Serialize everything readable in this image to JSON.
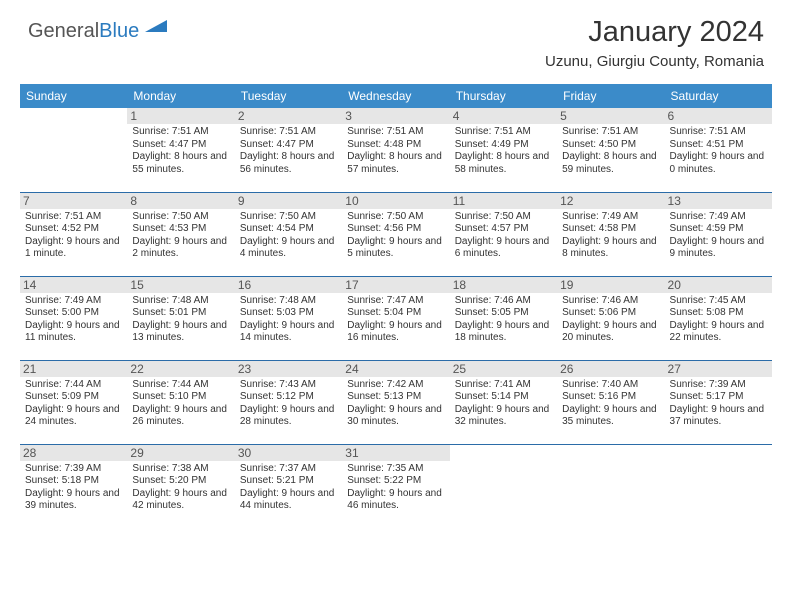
{
  "logo": {
    "text1": "General",
    "text2": "Blue"
  },
  "title": "January 2024",
  "location": "Uzunu, Giurgiu County, Romania",
  "colors": {
    "header_bg": "#3b8bc9",
    "header_text": "#ffffff",
    "day_num_bg": "#e6e6e6",
    "row_border": "#2b6ca8"
  },
  "day_headers": [
    "Sunday",
    "Monday",
    "Tuesday",
    "Wednesday",
    "Thursday",
    "Friday",
    "Saturday"
  ],
  "weeks": [
    [
      {
        "empty": true
      },
      {
        "day": "1",
        "sunrise": "7:51 AM",
        "sunset": "4:47 PM",
        "daylight": "8 hours and 55 minutes."
      },
      {
        "day": "2",
        "sunrise": "7:51 AM",
        "sunset": "4:47 PM",
        "daylight": "8 hours and 56 minutes."
      },
      {
        "day": "3",
        "sunrise": "7:51 AM",
        "sunset": "4:48 PM",
        "daylight": "8 hours and 57 minutes."
      },
      {
        "day": "4",
        "sunrise": "7:51 AM",
        "sunset": "4:49 PM",
        "daylight": "8 hours and 58 minutes."
      },
      {
        "day": "5",
        "sunrise": "7:51 AM",
        "sunset": "4:50 PM",
        "daylight": "8 hours and 59 minutes."
      },
      {
        "day": "6",
        "sunrise": "7:51 AM",
        "sunset": "4:51 PM",
        "daylight": "9 hours and 0 minutes."
      }
    ],
    [
      {
        "day": "7",
        "sunrise": "7:51 AM",
        "sunset": "4:52 PM",
        "daylight": "9 hours and 1 minute."
      },
      {
        "day": "8",
        "sunrise": "7:50 AM",
        "sunset": "4:53 PM",
        "daylight": "9 hours and 2 minutes."
      },
      {
        "day": "9",
        "sunrise": "7:50 AM",
        "sunset": "4:54 PM",
        "daylight": "9 hours and 4 minutes."
      },
      {
        "day": "10",
        "sunrise": "7:50 AM",
        "sunset": "4:56 PM",
        "daylight": "9 hours and 5 minutes."
      },
      {
        "day": "11",
        "sunrise": "7:50 AM",
        "sunset": "4:57 PM",
        "daylight": "9 hours and 6 minutes."
      },
      {
        "day": "12",
        "sunrise": "7:49 AM",
        "sunset": "4:58 PM",
        "daylight": "9 hours and 8 minutes."
      },
      {
        "day": "13",
        "sunrise": "7:49 AM",
        "sunset": "4:59 PM",
        "daylight": "9 hours and 9 minutes."
      }
    ],
    [
      {
        "day": "14",
        "sunrise": "7:49 AM",
        "sunset": "5:00 PM",
        "daylight": "9 hours and 11 minutes."
      },
      {
        "day": "15",
        "sunrise": "7:48 AM",
        "sunset": "5:01 PM",
        "daylight": "9 hours and 13 minutes."
      },
      {
        "day": "16",
        "sunrise": "7:48 AM",
        "sunset": "5:03 PM",
        "daylight": "9 hours and 14 minutes."
      },
      {
        "day": "17",
        "sunrise": "7:47 AM",
        "sunset": "5:04 PM",
        "daylight": "9 hours and 16 minutes."
      },
      {
        "day": "18",
        "sunrise": "7:46 AM",
        "sunset": "5:05 PM",
        "daylight": "9 hours and 18 minutes."
      },
      {
        "day": "19",
        "sunrise": "7:46 AM",
        "sunset": "5:06 PM",
        "daylight": "9 hours and 20 minutes."
      },
      {
        "day": "20",
        "sunrise": "7:45 AM",
        "sunset": "5:08 PM",
        "daylight": "9 hours and 22 minutes."
      }
    ],
    [
      {
        "day": "21",
        "sunrise": "7:44 AM",
        "sunset": "5:09 PM",
        "daylight": "9 hours and 24 minutes."
      },
      {
        "day": "22",
        "sunrise": "7:44 AM",
        "sunset": "5:10 PM",
        "daylight": "9 hours and 26 minutes."
      },
      {
        "day": "23",
        "sunrise": "7:43 AM",
        "sunset": "5:12 PM",
        "daylight": "9 hours and 28 minutes."
      },
      {
        "day": "24",
        "sunrise": "7:42 AM",
        "sunset": "5:13 PM",
        "daylight": "9 hours and 30 minutes."
      },
      {
        "day": "25",
        "sunrise": "7:41 AM",
        "sunset": "5:14 PM",
        "daylight": "9 hours and 32 minutes."
      },
      {
        "day": "26",
        "sunrise": "7:40 AM",
        "sunset": "5:16 PM",
        "daylight": "9 hours and 35 minutes."
      },
      {
        "day": "27",
        "sunrise": "7:39 AM",
        "sunset": "5:17 PM",
        "daylight": "9 hours and 37 minutes."
      }
    ],
    [
      {
        "day": "28",
        "sunrise": "7:39 AM",
        "sunset": "5:18 PM",
        "daylight": "9 hours and 39 minutes."
      },
      {
        "day": "29",
        "sunrise": "7:38 AM",
        "sunset": "5:20 PM",
        "daylight": "9 hours and 42 minutes."
      },
      {
        "day": "30",
        "sunrise": "7:37 AM",
        "sunset": "5:21 PM",
        "daylight": "9 hours and 44 minutes."
      },
      {
        "day": "31",
        "sunrise": "7:35 AM",
        "sunset": "5:22 PM",
        "daylight": "9 hours and 46 minutes."
      },
      {
        "empty": true
      },
      {
        "empty": true
      },
      {
        "empty": true
      }
    ]
  ],
  "labels": {
    "sunrise_prefix": "Sunrise: ",
    "sunset_prefix": "Sunset: ",
    "daylight_prefix": "Daylight: "
  }
}
